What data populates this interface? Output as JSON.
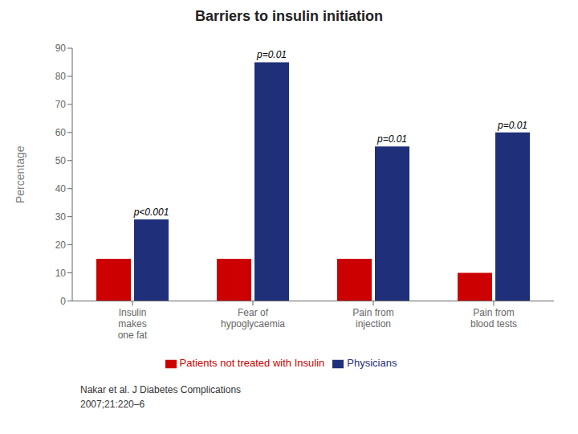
{
  "chart_data": {
    "type": "bar",
    "title": "Barriers to insulin initiation",
    "categories": [
      "Insulin\nmakes\none fat",
      "Fear of\nhypoglycaemia",
      "Pain from\ninjection",
      "Pain from\nblood tests"
    ],
    "series": [
      {
        "name": "Patients not treated with Insulin",
        "color": "#cc0000",
        "values": [
          15,
          15,
          15,
          10
        ]
      },
      {
        "name": "Physicians",
        "color": "#1f2f7a",
        "values": [
          29,
          85,
          55,
          60
        ],
        "annotations": [
          "p<0.001",
          "p=0.01",
          "p=0.01",
          "p=0.01"
        ]
      }
    ],
    "ylabel": "Percentage",
    "ylim": [
      0,
      90
    ],
    "yticks": [
      0,
      10,
      20,
      30,
      40,
      50,
      60,
      70,
      80,
      90
    ],
    "grid": false,
    "legend": "bottom",
    "caption": [
      "Nakar et al. J Diabetes Complications",
      "2007;21:220–6"
    ]
  }
}
